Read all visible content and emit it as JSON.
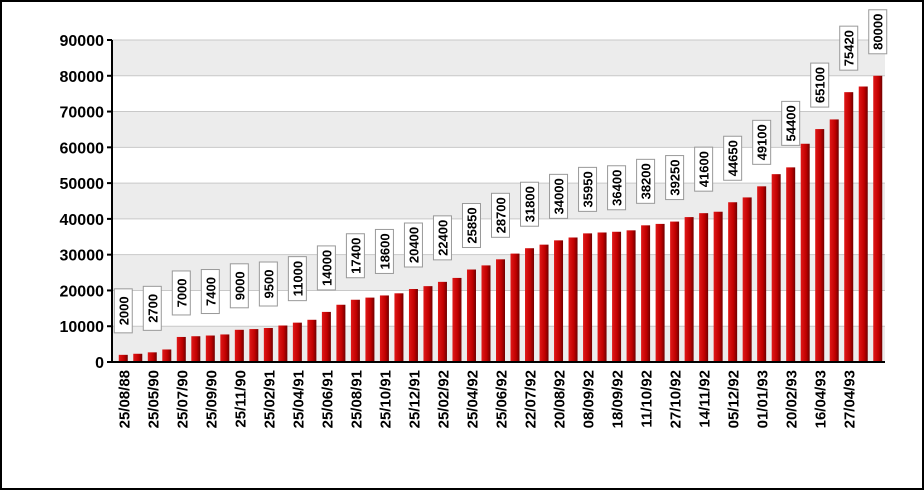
{
  "chart_data": {
    "type": "bar",
    "color": "#cc0000",
    "grid": true,
    "ylim": [
      0,
      90000
    ],
    "yticks": [
      0,
      10000,
      20000,
      30000,
      40000,
      50000,
      60000,
      70000,
      80000,
      90000
    ],
    "categories": [
      "25/08/88",
      null,
      "25/05/90",
      null,
      "25/07/90",
      null,
      "25/09/90",
      null,
      "25/11/90",
      null,
      "25/02/91",
      null,
      "25/04/91",
      null,
      "25/06/91",
      null,
      "25/08/91",
      null,
      "25/10/91",
      null,
      "25/12/91",
      null,
      "25/02/92",
      null,
      "25/04/92",
      null,
      "25/06/92",
      null,
      "22/07/92",
      null,
      "20/08/92",
      null,
      "08/09/92",
      null,
      "18/09/92",
      null,
      "11/10/92",
      null,
      "27/10/92",
      null,
      "14/11/92",
      null,
      "05/12/92",
      null,
      "01/01/93",
      null,
      "20/02/93",
      null,
      "16/04/93",
      null,
      "27/04/93",
      null,
      null
    ],
    "values": [
      2000,
      2300,
      2700,
      3500,
      7000,
      7200,
      7400,
      7700,
      9000,
      9200,
      9500,
      10200,
      11000,
      11800,
      14000,
      16000,
      17400,
      18000,
      18600,
      19200,
      20400,
      21200,
      22400,
      23500,
      25850,
      27000,
      28700,
      30300,
      31800,
      32800,
      34000,
      34800,
      35950,
      36200,
      36400,
      36800,
      38200,
      38600,
      39250,
      40500,
      41600,
      42000,
      44650,
      46000,
      49100,
      52500,
      54400,
      61000,
      65100,
      67800,
      75420,
      77000,
      80000
    ],
    "value_labels": [
      "2000",
      null,
      "2700",
      null,
      "7000",
      null,
      "7400",
      null,
      "9000",
      null,
      "9500",
      null,
      "11000",
      null,
      "14000",
      null,
      "17400",
      null,
      "18600",
      null,
      "20400",
      null,
      "22400",
      null,
      "25850",
      null,
      "28700",
      null,
      "31800",
      null,
      "34000",
      null,
      "35950",
      null,
      "36400",
      null,
      "38200",
      null,
      "39250",
      null,
      "41600",
      null,
      "44650",
      null,
      "49100",
      null,
      "54400",
      null,
      "65100",
      null,
      "75420",
      null,
      "80000"
    ]
  }
}
